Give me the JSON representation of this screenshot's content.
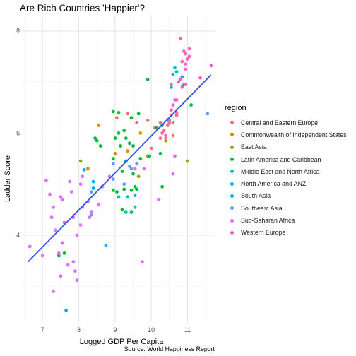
{
  "chart_data": {
    "type": "scatter",
    "title": "Are Rich Countries 'Happier'?",
    "xlabel": "Logged GDP Per Capita",
    "ylabel": "Ladder Score",
    "caption": "Source: World Happiness Report",
    "xlim": [
      6.45,
      11.75
    ],
    "ylim": [
      2.3,
      8.3
    ],
    "x_ticks": [
      7,
      8,
      9,
      10,
      11
    ],
    "y_ticks": [
      4,
      6,
      8
    ],
    "grid": true,
    "legend_title": "region",
    "legend_position": "right",
    "trend_line": {
      "x": [
        6.6,
        11.65
      ],
      "y": [
        3.48,
        7.14
      ],
      "color": "#3452e6"
    },
    "series": [
      {
        "name": "Central and Eastern Europe",
        "color": "#f8766d",
        "points": [
          [
            9.05,
            6.3
          ],
          [
            9.35,
            6.38
          ],
          [
            9.6,
            6.2
          ],
          [
            9.9,
            6.25
          ],
          [
            10.1,
            6.1
          ],
          [
            10.25,
            6.2
          ],
          [
            10.35,
            6.05
          ],
          [
            10.45,
            6.15
          ],
          [
            10.55,
            6.35
          ],
          [
            10.6,
            6.2
          ],
          [
            10.7,
            6.4
          ],
          [
            10.5,
            6.25
          ],
          [
            10.25,
            5.9
          ],
          [
            10.4,
            5.95
          ],
          [
            10.0,
            5.7
          ],
          [
            10.6,
            5.95
          ]
        ]
      },
      {
        "name": "Commonwealth of Independent States",
        "color": "#d39200",
        "points": [
          [
            8.55,
            6.15
          ],
          [
            9.35,
            5.65
          ],
          [
            9.7,
            6.0
          ],
          [
            9.9,
            5.55
          ],
          [
            8.25,
            5.3
          ],
          [
            9.0,
            5.6
          ]
        ]
      },
      {
        "name": "East Asia",
        "color": "#93aa00",
        "points": [
          [
            8.05,
            5.45
          ],
          [
            10.4,
            5.85
          ],
          [
            11.0,
            5.45
          ],
          [
            9.65,
            5.15
          ]
        ]
      },
      {
        "name": "Latin America and Caribbean",
        "color": "#00ba38",
        "points": [
          [
            8.95,
            6.42
          ],
          [
            9.1,
            6.4
          ],
          [
            9.25,
            6.05
          ],
          [
            9.45,
            6.3
          ],
          [
            9.65,
            6.38
          ],
          [
            9.9,
            7.05
          ],
          [
            10.15,
            6.1
          ],
          [
            10.3,
            6.15
          ],
          [
            9.1,
            6.0
          ],
          [
            9.0,
            5.9
          ],
          [
            8.6,
            5.75
          ],
          [
            9.3,
            5.9
          ],
          [
            9.4,
            5.8
          ],
          [
            9.15,
            5.75
          ],
          [
            9.5,
            5.75
          ],
          [
            9.7,
            5.5
          ],
          [
            9.95,
            5.55
          ],
          [
            10.25,
            5.6
          ],
          [
            8.5,
            5.85
          ],
          [
            8.45,
            5.9
          ],
          [
            9.2,
            5.25
          ],
          [
            8.95,
            4.88
          ],
          [
            9.05,
            4.85
          ],
          [
            9.25,
            4.9
          ],
          [
            9.45,
            4.88
          ],
          [
            9.55,
            4.95
          ],
          [
            9.6,
            4.9
          ],
          [
            10.3,
            4.95
          ],
          [
            9.2,
            4.5
          ],
          [
            11.1,
            6.55
          ],
          [
            8.95,
            5.5
          ],
          [
            9.3,
            5.45
          ],
          [
            9.5,
            5.2
          ],
          [
            7.6,
            3.65
          ],
          [
            7.45,
            3.6
          ]
        ]
      },
      {
        "name": "Middle East and North Africa",
        "color": "#00c19f",
        "points": [
          [
            10.6,
            7.15
          ],
          [
            10.9,
            6.95
          ],
          [
            10.55,
            6.9
          ],
          [
            10.7,
            7.2
          ],
          [
            9.1,
            4.75
          ],
          [
            9.3,
            4.45
          ],
          [
            9.45,
            4.45
          ],
          [
            9.55,
            4.55
          ],
          [
            9.35,
            4.75
          ]
        ]
      },
      {
        "name": "North America and ANZ",
        "color": "#00b9e3",
        "points": [
          [
            10.65,
            7.28
          ],
          [
            10.85,
            7.1
          ]
        ]
      },
      {
        "name": "South Asia",
        "color": "#00adfa",
        "points": [
          [
            8.15,
            5.28
          ],
          [
            8.4,
            5.05
          ],
          [
            8.75,
            3.8
          ],
          [
            7.65,
            2.53
          ],
          [
            9.55,
            4.78
          ],
          [
            8.4,
            4.92
          ]
        ]
      },
      {
        "name": "Southeast Asia",
        "color": "#619cff",
        "points": [
          [
            11.55,
            6.38
          ],
          [
            10.45,
            6.25
          ],
          [
            9.4,
            5.35
          ],
          [
            9.6,
            5.4
          ],
          [
            8.95,
            5.4
          ],
          [
            9.45,
            5.3
          ],
          [
            8.95,
            5.1
          ],
          [
            9.25,
            5.0
          ],
          [
            8.35,
            4.85
          ],
          [
            8.35,
            4.4
          ]
        ]
      },
      {
        "name": "Sub-Saharan Africa",
        "color": "#db72fb",
        "points": [
          [
            9.55,
            5.3
          ],
          [
            9.8,
            5.3
          ],
          [
            8.65,
            4.95
          ],
          [
            8.85,
            5.15
          ],
          [
            8.1,
            5.15
          ],
          [
            8.05,
            5.0
          ],
          [
            7.75,
            5.05
          ],
          [
            7.5,
            4.75
          ],
          [
            7.2,
            4.8
          ],
          [
            7.1,
            5.07
          ],
          [
            7.3,
            4.55
          ],
          [
            7.55,
            4.7
          ],
          [
            7.8,
            4.85
          ],
          [
            8.25,
            4.65
          ],
          [
            8.35,
            4.45
          ],
          [
            8.55,
            4.6
          ],
          [
            8.05,
            4.2
          ],
          [
            7.95,
            4.0
          ],
          [
            7.85,
            4.35
          ],
          [
            7.35,
            4.1
          ],
          [
            7.25,
            4.35
          ],
          [
            7.6,
            4.25
          ],
          [
            7.45,
            3.65
          ],
          [
            7.55,
            3.85
          ],
          [
            7.7,
            3.42
          ],
          [
            7.9,
            3.3
          ],
          [
            7.95,
            3.12
          ],
          [
            7.5,
            3.2
          ],
          [
            7.0,
            3.6
          ],
          [
            6.65,
            3.78
          ],
          [
            7.3,
            2.9
          ],
          [
            7.85,
            3.48
          ],
          [
            8.1,
            4.55
          ],
          [
            8.3,
            4.35
          ],
          [
            9.75,
            3.48
          ],
          [
            10.2,
            4.7
          ],
          [
            10.6,
            6.55
          ],
          [
            10.65,
            6.65
          ],
          [
            10.65,
            5.55
          ],
          [
            10.6,
            5.2
          ]
        ]
      },
      {
        "name": "Western Europe",
        "color": "#ff61c3",
        "points": [
          [
            10.8,
            7.85
          ],
          [
            10.9,
            7.6
          ],
          [
            10.95,
            7.55
          ],
          [
            11.05,
            7.5
          ],
          [
            10.85,
            7.4
          ],
          [
            10.95,
            7.35
          ],
          [
            11.0,
            7.45
          ],
          [
            11.05,
            7.65
          ],
          [
            10.95,
            7.25
          ],
          [
            11.65,
            7.32
          ],
          [
            11.35,
            7.08
          ],
          [
            10.8,
            7.05
          ],
          [
            10.75,
            7.0
          ],
          [
            10.95,
            6.95
          ],
          [
            10.85,
            6.9
          ],
          [
            10.55,
            6.95
          ],
          [
            10.6,
            6.55
          ],
          [
            10.7,
            6.65
          ],
          [
            10.55,
            6.45
          ],
          [
            10.7,
            6.35
          ],
          [
            10.5,
            6.2
          ],
          [
            10.3,
            6.0
          ],
          [
            10.4,
            5.9
          ]
        ]
      }
    ]
  }
}
